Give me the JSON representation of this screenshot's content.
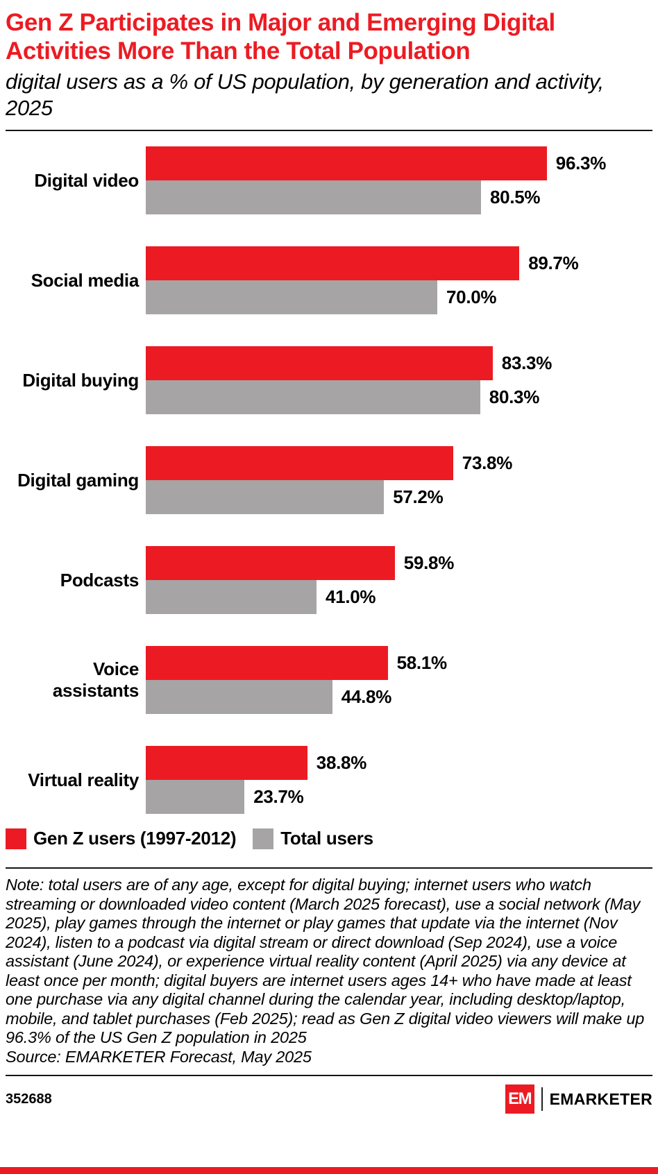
{
  "header": {
    "title": "Gen Z Participates in Major and Emerging Digital Activities More Than the Total Population",
    "subtitle": "digital users as a % of US population, by generation and activity, 2025"
  },
  "chart_data": {
    "type": "bar",
    "orientation": "horizontal",
    "title": "Gen Z Participates in Major and Emerging Digital Activities More Than the Total Population",
    "subtitle": "digital users as a % of US population, by generation and activity, 2025",
    "categories": [
      "Digital video",
      "Social media",
      "Digital buying",
      "Digital gaming",
      "Podcasts",
      "Voice assistants",
      "Virtual reality"
    ],
    "series": [
      {
        "name": "Gen Z users (1997-2012)",
        "color": "#EC1B23",
        "values": [
          96.3,
          89.7,
          83.3,
          73.8,
          59.8,
          58.1,
          38.8
        ]
      },
      {
        "name": "Total users",
        "color": "#A6A4A4",
        "values": [
          80.5,
          70.0,
          80.3,
          57.2,
          41.0,
          44.8,
          23.7
        ]
      }
    ],
    "value_suffix": "%",
    "xlim": [
      0,
      100
    ],
    "grid": false,
    "legend_position": "bottom-left"
  },
  "footnote": {
    "note": "Note: total users are of any age, except for digital buying; internet users who watch streaming or downloaded video content (March 2025 forecast), use a social network (May 2025), play games through the internet or play games that update via the internet (Nov 2024), listen to a podcast via digital stream or direct download (Sep 2024), use a voice assistant (June 2024), or experience virtual reality content (April 2025) via any device at least once per month; digital buyers are internet users ages 14+ who have made at least one purchase via any digital channel during the calendar year, including desktop/laptop, mobile, and tablet purchases (Feb 2025); read as Gen Z digital video viewers will make up 96.3% of the US Gen Z population in 2025",
    "source": "Source: EMARKETER Forecast, May 2025"
  },
  "footer": {
    "chart_id": "352688",
    "logo_mark": "EM",
    "logo_text": "EMARKETER"
  }
}
